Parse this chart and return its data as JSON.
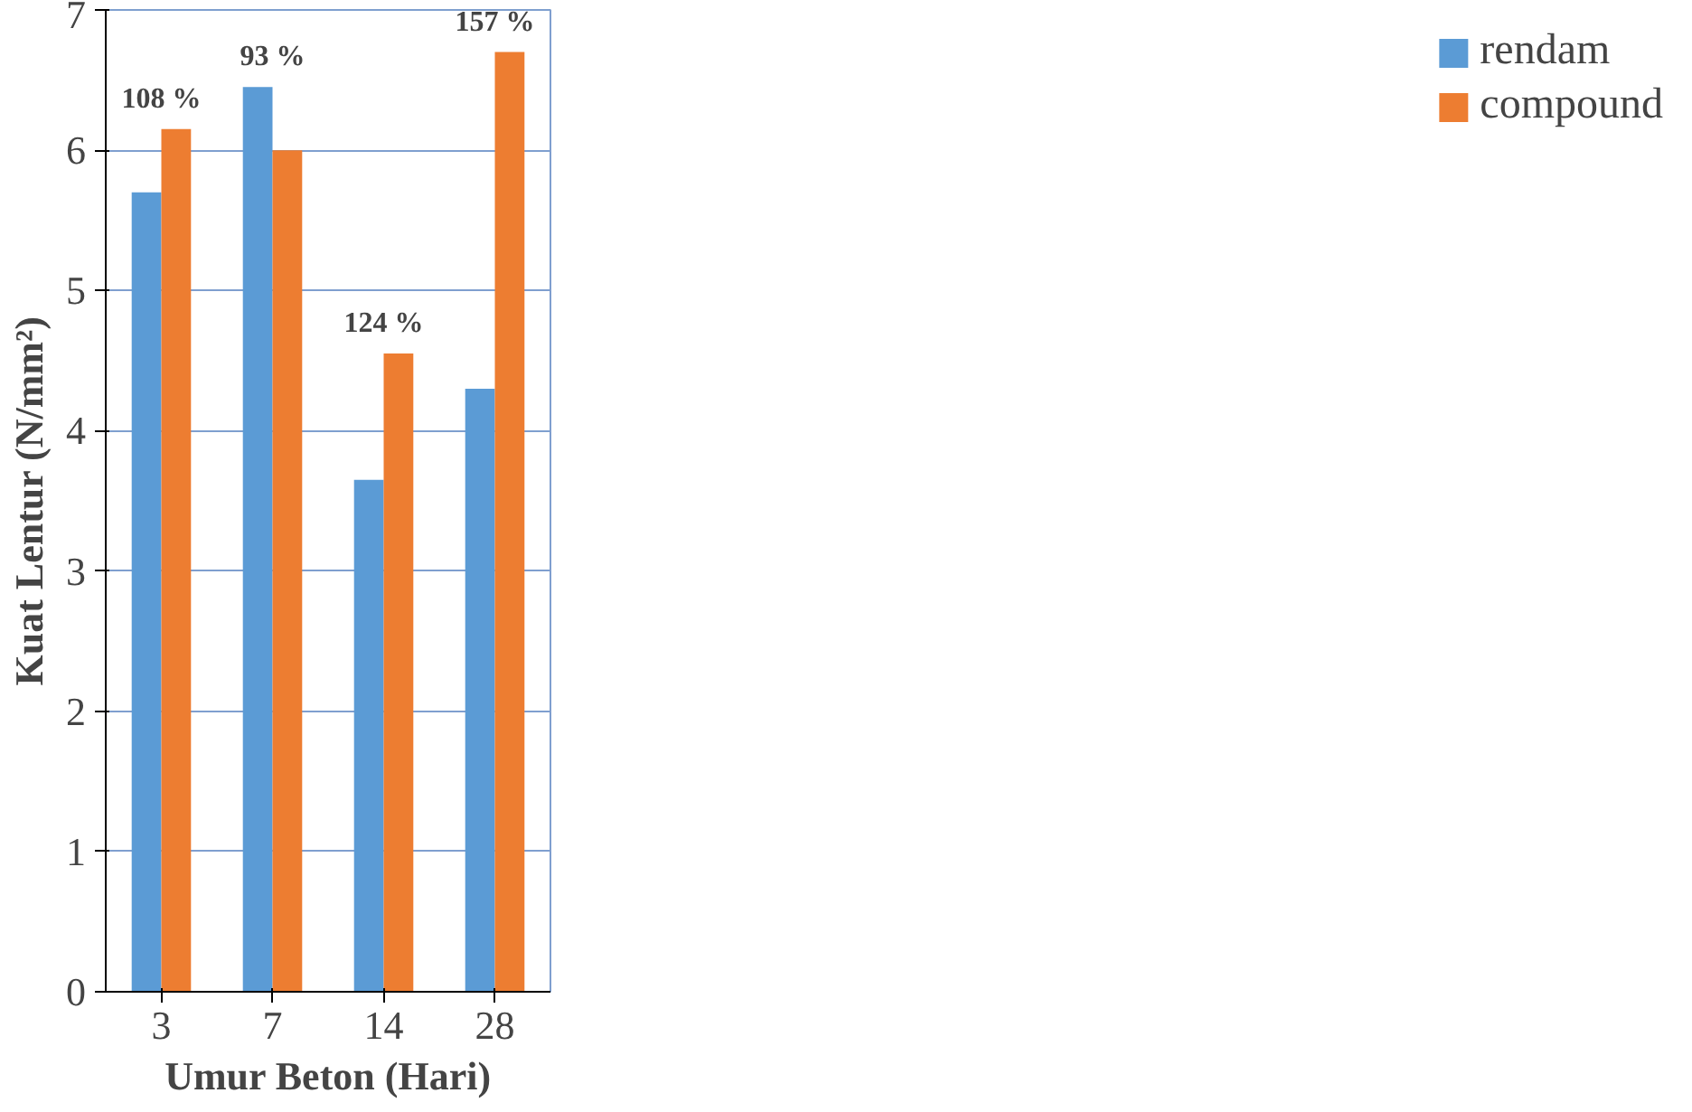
{
  "chart_data": {
    "type": "bar",
    "xlabel": "Umur Beton (Hari)",
    "ylabel": "Kuat Lentur (N/mm²)",
    "categories": [
      "3",
      "7",
      "14",
      "28"
    ],
    "series": [
      {
        "name": "rendam",
        "color": "#5b9bd5",
        "values": [
          5.7,
          6.45,
          3.65,
          4.3
        ]
      },
      {
        "name": "compound",
        "color": "#ed7d31",
        "values": [
          6.15,
          6.0,
          4.55,
          6.7
        ]
      }
    ],
    "ylim": [
      0,
      7
    ],
    "yticks": [
      0,
      1,
      2,
      3,
      4,
      5,
      6,
      7
    ],
    "grid": "y",
    "legend": "right",
    "annotations": [
      {
        "text": "108 %",
        "x": "3",
        "y": 6.15
      },
      {
        "text": "93 %",
        "x": "7",
        "y": 6.45
      },
      {
        "text": "124 %",
        "x": "14",
        "y": 4.55
      },
      {
        "text": "157 %",
        "x": "28",
        "y": 6.7
      }
    ]
  }
}
